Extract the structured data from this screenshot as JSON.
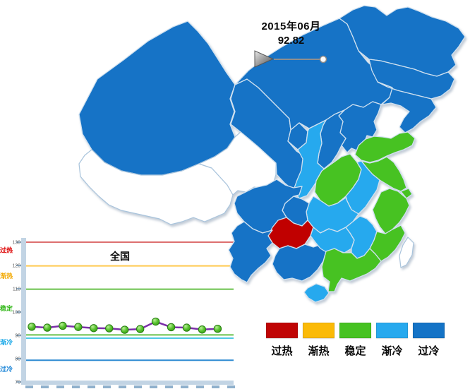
{
  "header": {
    "date_label": "2015年06月",
    "value_label": "92.82"
  },
  "player": {
    "progress": 1.0
  },
  "legend": {
    "items": [
      {
        "id": "hot",
        "label": "过热",
        "color": "#C00404"
      },
      {
        "id": "warm",
        "label": "渐热",
        "color": "#FBBA07"
      },
      {
        "id": "stable",
        "label": "稳定",
        "color": "#46C221"
      },
      {
        "id": "cool",
        "label": "渐冷",
        "color": "#27A9EE"
      },
      {
        "id": "cold",
        "label": "过冷",
        "color": "#1473C6"
      }
    ]
  },
  "map": {
    "status_colors": {
      "过热": "#C00404",
      "渐热": "#FBBA07",
      "稳定": "#46C221",
      "渐冷": "#27A9EE",
      "过冷": "#1473C6",
      "无数据": "#FFFFFF"
    },
    "provinces": [
      {
        "id": "xinjiang",
        "name": "新疆",
        "status": "过冷"
      },
      {
        "id": "xizang",
        "name": "西藏",
        "status": "无数据"
      },
      {
        "id": "qinghai",
        "name": "青海",
        "status": "无数据"
      },
      {
        "id": "gansu",
        "name": "甘肃",
        "status": "过冷"
      },
      {
        "id": "neimenggu",
        "name": "内蒙古",
        "status": "过冷"
      },
      {
        "id": "ningxia",
        "name": "宁夏",
        "status": "过冷"
      },
      {
        "id": "heilongjiang",
        "name": "黑龙江",
        "status": "过冷"
      },
      {
        "id": "jilin",
        "name": "吉林",
        "status": "过冷"
      },
      {
        "id": "liaoning",
        "name": "辽宁",
        "status": "过冷"
      },
      {
        "id": "hebei",
        "name": "河北",
        "status": "过冷"
      },
      {
        "id": "shanxi",
        "name": "山西",
        "status": "过冷"
      },
      {
        "id": "shaanxi",
        "name": "陕西",
        "status": "渐冷"
      },
      {
        "id": "shandong",
        "name": "山东",
        "status": "稳定"
      },
      {
        "id": "henan",
        "name": "河南",
        "status": "稳定"
      },
      {
        "id": "jiangsu",
        "name": "江苏",
        "status": "稳定"
      },
      {
        "id": "anhui",
        "name": "安徽",
        "status": "渐冷"
      },
      {
        "id": "shanghai",
        "name": "上海",
        "status": "稳定"
      },
      {
        "id": "zhejiang",
        "name": "浙江",
        "status": "稳定"
      },
      {
        "id": "hubei",
        "name": "湖北",
        "status": "渐冷"
      },
      {
        "id": "chongqing",
        "name": "重庆",
        "status": "过冷"
      },
      {
        "id": "sichuan",
        "name": "四川",
        "status": "过冷"
      },
      {
        "id": "guizhou",
        "name": "贵州",
        "status": "过热"
      },
      {
        "id": "yunnan",
        "name": "云南",
        "status": "过冷"
      },
      {
        "id": "guangxi",
        "name": "广西",
        "status": "过冷"
      },
      {
        "id": "hunan",
        "name": "湖南",
        "status": "渐冷"
      },
      {
        "id": "jiangxi",
        "name": "江西",
        "status": "渐冷"
      },
      {
        "id": "fujian",
        "name": "福建",
        "status": "稳定"
      },
      {
        "id": "guangdong",
        "name": "广东",
        "status": "稳定"
      },
      {
        "id": "hainan",
        "name": "海南",
        "status": "渐冷"
      },
      {
        "id": "taiwan",
        "name": "台湾",
        "status": "无数据"
      },
      {
        "id": "beijing",
        "name": "北京",
        "status": "渐冷"
      },
      {
        "id": "tianjin",
        "name": "天津",
        "status": "过热"
      }
    ]
  },
  "chart_data": {
    "type": "line",
    "title": "全国",
    "series": [
      {
        "name": "全国",
        "values": [
          93.7,
          93.3,
          94.1,
          93.6,
          93.1,
          93.0,
          92.4,
          92.7,
          95.9,
          93.5,
          93.3,
          92.5,
          92.82
        ]
      }
    ],
    "x_tick_labels": [],
    "ylim": [
      70,
      130
    ],
    "y_ticks": [
      130,
      120,
      110,
      100,
      90,
      80,
      70
    ],
    "grid": false,
    "thresholds": [
      {
        "value": 130.0,
        "color": "#DD7070"
      },
      {
        "value": 119.8,
        "color": "#FFC94F"
      },
      {
        "value": 109.8,
        "color": "#68C14A"
      },
      {
        "value": 90.2,
        "color": "#68C14A"
      },
      {
        "value": 88.8,
        "color": "#4FC9E4"
      },
      {
        "value": 79.3,
        "color": "#2E8BD2"
      }
    ],
    "zone_labels": [
      {
        "text": "过热",
        "value": 126.5,
        "color": "#DD0000"
      },
      {
        "text": "渐热",
        "value": 115.5,
        "color": "#F2A800"
      },
      {
        "text": "稳定",
        "value": 101.5,
        "color": "#35B81C"
      },
      {
        "text": "渐冷",
        "value": 87.0,
        "color": "#1FAAE8"
      },
      {
        "text": "过冷",
        "value": 75.5,
        "color": "#1F87D8"
      }
    ],
    "line_color": "#7B2FA8",
    "marker_fill": "#46B41E",
    "marker_stroke": "#257C0F",
    "axis_color": "#C2D4E4",
    "tick_color": "#8FB0CC",
    "tick_label_color": "#666666"
  }
}
